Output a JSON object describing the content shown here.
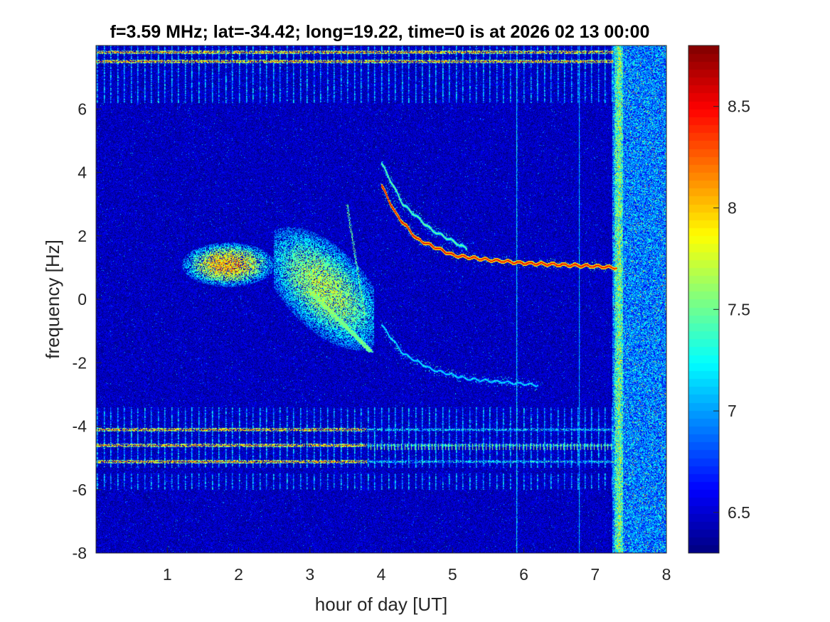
{
  "chart_data": {
    "type": "heatmap",
    "title": "f=3.59 MHz;  lat=-34.42; long=19.22, time=0 is at 2026 02 13 00:00",
    "xlabel": "hour of day [UT]",
    "ylabel": "frequency [Hz]",
    "xlim": [
      0,
      8
    ],
    "ylim": [
      -8,
      8
    ],
    "xticks": [
      "1",
      "2",
      "3",
      "4",
      "5",
      "6",
      "7",
      "8"
    ],
    "yticks": [
      "-8",
      "-6",
      "-4",
      "-2",
      "0",
      "2",
      "4",
      "6"
    ],
    "colorbar": {
      "colormap": "jet",
      "range": [
        6.3,
        8.8
      ],
      "ticks": [
        "6.5",
        "7",
        "7.5",
        "8",
        "8.5"
      ]
    },
    "background_level": 6.45,
    "features": [
      {
        "kind": "diffuse_blob",
        "label": "spread echo",
        "x_range": [
          1.2,
          2.5
        ],
        "y_range": [
          0.4,
          1.8
        ],
        "peak": 8.2
      },
      {
        "kind": "diffuse_blob",
        "label": "spread echo",
        "x_range": [
          2.5,
          3.9
        ],
        "y_range": [
          -1.6,
          2.3
        ],
        "peak": 7.8
      },
      {
        "kind": "trace",
        "label": "main Doppler trace",
        "points": [
          [
            4.0,
            3.6
          ],
          [
            4.2,
            2.7
          ],
          [
            4.5,
            1.9
          ],
          [
            5.0,
            1.4
          ],
          [
            5.5,
            1.25
          ],
          [
            6.0,
            1.15
          ],
          [
            7.0,
            1.05
          ],
          [
            7.3,
            1.0
          ]
        ],
        "level": 8.6
      },
      {
        "kind": "trace",
        "label": "secondary trace",
        "points": [
          [
            4.0,
            4.3
          ],
          [
            4.3,
            3.0
          ],
          [
            4.7,
            2.2
          ],
          [
            5.2,
            1.6
          ]
        ],
        "level": 7.6
      },
      {
        "kind": "trace",
        "label": "negative Doppler trace",
        "points": [
          [
            4.0,
            -0.8
          ],
          [
            4.3,
            -1.7
          ],
          [
            4.7,
            -2.2
          ],
          [
            5.2,
            -2.5
          ],
          [
            5.7,
            -2.6
          ],
          [
            6.2,
            -2.7
          ]
        ],
        "level": 7.3
      },
      {
        "kind": "band",
        "label": "carrier rows",
        "y": [
          7.5,
          7.8,
          -4.1,
          -4.6,
          -5.1
        ],
        "level": 8.4
      },
      {
        "kind": "comb",
        "label": "periodic vertical stripes",
        "y_ranges": [
          [
            6.2,
            8.0
          ],
          [
            -5.3,
            -3.4
          ],
          [
            -6.0,
            -5.5
          ]
        ],
        "spacing_hours": 0.095,
        "level": 7.4
      },
      {
        "kind": "vertical_line",
        "x": 5.9,
        "level": 7.4
      },
      {
        "kind": "vertical_line",
        "x": 6.77,
        "level": 7.3
      },
      {
        "kind": "noise_region",
        "x_range": [
          7.25,
          8.0
        ],
        "level": 6.9
      }
    ]
  }
}
